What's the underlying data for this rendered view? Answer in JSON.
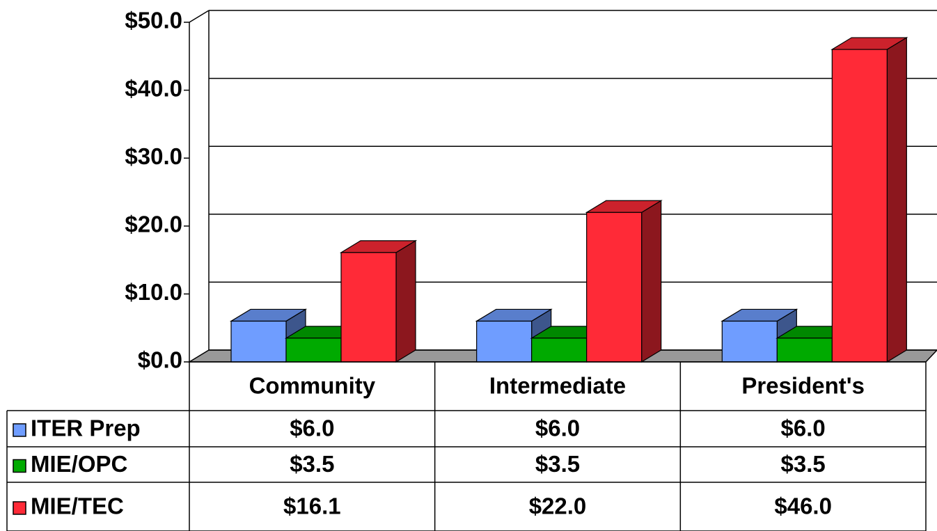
{
  "chart_data": {
    "type": "bar3d",
    "categories": [
      "Community",
      "Intermediate",
      "President's"
    ],
    "series": [
      {
        "name": "ITER Prep",
        "color": "#6f9dff",
        "values": [
          6.0,
          6.0,
          6.0
        ],
        "value_labels": [
          "$6.0",
          "$6.0",
          "$6.0"
        ]
      },
      {
        "name": "MIE/OPC",
        "color": "#00aa00",
        "values": [
          3.5,
          3.5,
          3.5
        ],
        "value_labels": [
          "$3.5",
          "$3.5",
          "$3.5"
        ]
      },
      {
        "name": "MIE/TEC",
        "color": "#ff2a37",
        "values": [
          16.1,
          22.0,
          46.0
        ],
        "value_labels": [
          "$16.1",
          "$22.0",
          "$46.0"
        ]
      }
    ],
    "ylim": [
      0,
      50
    ],
    "yticks": [
      {
        "value": 0,
        "label": "$0.0"
      },
      {
        "value": 10,
        "label": "$10.0"
      },
      {
        "value": 20,
        "label": "$20.0"
      },
      {
        "value": 30,
        "label": "$30.0"
      },
      {
        "value": 40,
        "label": "$40.0"
      },
      {
        "value": 50,
        "label": "$50.0"
      }
    ],
    "grid": true
  }
}
